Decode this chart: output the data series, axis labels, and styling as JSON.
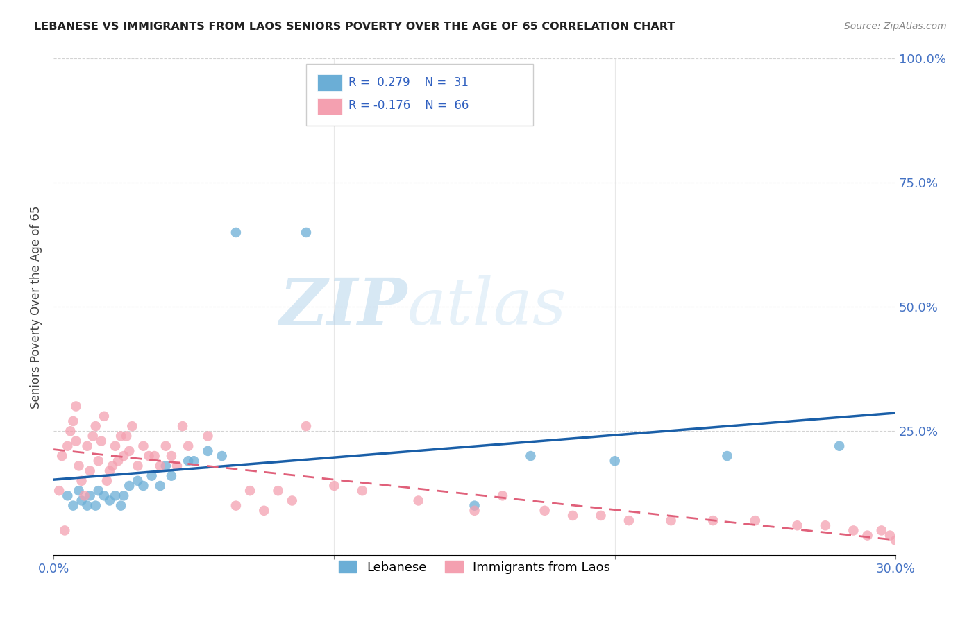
{
  "title": "LEBANESE VS IMMIGRANTS FROM LAOS SENIORS POVERTY OVER THE AGE OF 65 CORRELATION CHART",
  "source": "Source: ZipAtlas.com",
  "ylabel": "Seniors Poverty Over the Age of 65",
  "xlim": [
    0.0,
    0.3
  ],
  "ylim": [
    0.0,
    1.0
  ],
  "xticks": [
    0.0,
    0.1,
    0.2,
    0.3
  ],
  "xtick_labels": [
    "0.0%",
    "",
    "",
    "30.0%"
  ],
  "ytick_labels": [
    "",
    "25.0%",
    "50.0%",
    "75.0%",
    "100.0%"
  ],
  "yticks": [
    0.0,
    0.25,
    0.5,
    0.75,
    1.0
  ],
  "blue_color": "#6baed6",
  "pink_color": "#f4a0b0",
  "blue_line_color": "#1a5fa8",
  "pink_line_color": "#e0607a",
  "watermark_zip": "ZIP",
  "watermark_atlas": "atlas",
  "blue_scatter_x": [
    0.005,
    0.007,
    0.009,
    0.01,
    0.012,
    0.013,
    0.015,
    0.016,
    0.018,
    0.02,
    0.022,
    0.024,
    0.025,
    0.027,
    0.03,
    0.032,
    0.035,
    0.038,
    0.04,
    0.042,
    0.048,
    0.05,
    0.055,
    0.06,
    0.065,
    0.09,
    0.15,
    0.17,
    0.2,
    0.24,
    0.28
  ],
  "blue_scatter_y": [
    0.12,
    0.1,
    0.13,
    0.11,
    0.1,
    0.12,
    0.1,
    0.13,
    0.12,
    0.11,
    0.12,
    0.1,
    0.12,
    0.14,
    0.15,
    0.14,
    0.16,
    0.14,
    0.18,
    0.16,
    0.19,
    0.19,
    0.21,
    0.2,
    0.65,
    0.65,
    0.1,
    0.2,
    0.19,
    0.2,
    0.22
  ],
  "pink_scatter_x": [
    0.002,
    0.003,
    0.004,
    0.005,
    0.006,
    0.007,
    0.008,
    0.008,
    0.009,
    0.01,
    0.011,
    0.012,
    0.013,
    0.014,
    0.015,
    0.016,
    0.017,
    0.018,
    0.019,
    0.02,
    0.021,
    0.022,
    0.023,
    0.024,
    0.025,
    0.026,
    0.027,
    0.028,
    0.03,
    0.032,
    0.034,
    0.036,
    0.038,
    0.04,
    0.042,
    0.044,
    0.046,
    0.048,
    0.055,
    0.065,
    0.07,
    0.075,
    0.08,
    0.085,
    0.09,
    0.1,
    0.11,
    0.13,
    0.15,
    0.16,
    0.175,
    0.185,
    0.195,
    0.205,
    0.22,
    0.235,
    0.25,
    0.265,
    0.275,
    0.285,
    0.29,
    0.295,
    0.298,
    0.3,
    0.302,
    0.305
  ],
  "pink_scatter_y": [
    0.13,
    0.2,
    0.05,
    0.22,
    0.25,
    0.27,
    0.23,
    0.3,
    0.18,
    0.15,
    0.12,
    0.22,
    0.17,
    0.24,
    0.26,
    0.19,
    0.23,
    0.28,
    0.15,
    0.17,
    0.18,
    0.22,
    0.19,
    0.24,
    0.2,
    0.24,
    0.21,
    0.26,
    0.18,
    0.22,
    0.2,
    0.2,
    0.18,
    0.22,
    0.2,
    0.18,
    0.26,
    0.22,
    0.24,
    0.1,
    0.13,
    0.09,
    0.13,
    0.11,
    0.26,
    0.14,
    0.13,
    0.11,
    0.09,
    0.12,
    0.09,
    0.08,
    0.08,
    0.07,
    0.07,
    0.07,
    0.07,
    0.06,
    0.06,
    0.05,
    0.04,
    0.05,
    0.04,
    0.03,
    0.04,
    0.03
  ]
}
